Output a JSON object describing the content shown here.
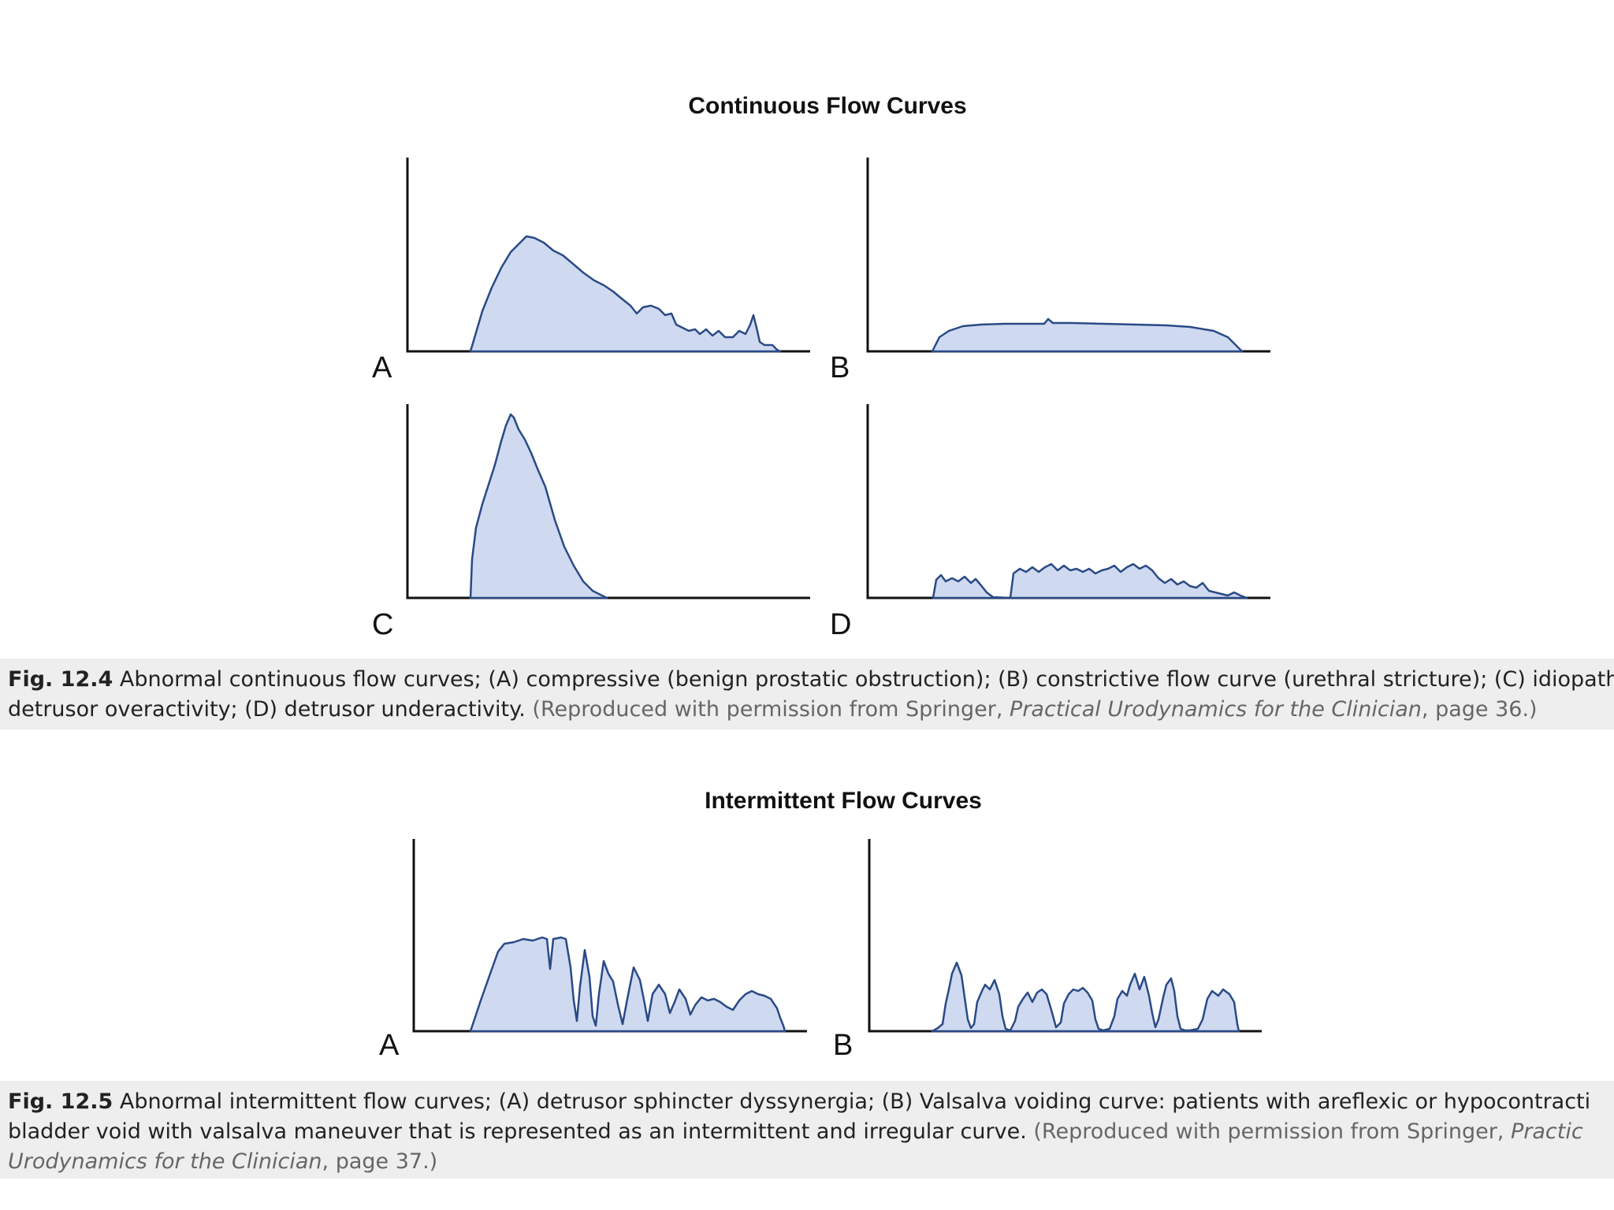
{
  "figure1": {
    "title": "Continuous Flow Curves",
    "panels": [
      {
        "label": "A",
        "condition": "compressive (benign prostatic obstruction)"
      },
      {
        "label": "B",
        "condition": "constrictive flow curve (urethral stricture)"
      },
      {
        "label": "C",
        "condition": "idiopathic detrusor overactivity"
      },
      {
        "label": "D",
        "condition": "detrusor underactivity"
      }
    ],
    "caption": {
      "fig_number": "Fig. 12.4",
      "line1_text": "Abnormal continuous flow curves; (A) compressive (benign prostatic obstruction); (B) constrictive flow curve (urethral stricture); (C) idiopath",
      "line2_text": "detrusor overactivity; (D) detrusor underactivity.",
      "source_prefix": "(Reproduced with permission from Springer, ",
      "source_book": "Practical Urodynamics for the Clinician",
      "source_suffix": ", page 36.)"
    }
  },
  "figure2": {
    "title": "Intermittent Flow Curves",
    "panels": [
      {
        "label": "A",
        "condition": "detrusor sphincter dyssynergia"
      },
      {
        "label": "B",
        "condition": "Valsalva voiding curve"
      }
    ],
    "caption": {
      "fig_number": "Fig. 12.5",
      "line1_text": "Abnormal intermittent flow curves; (A) detrusor sphincter dyssynergia; (B) Valsalva voiding curve: patients with areflexic or hypocontracti",
      "line2_text": "bladder void with valsalva maneuver that is represented as an intermittent and irregular curve.",
      "source_prefix": "(Reproduced with permission from Springer, ",
      "source_book_part1": "Practic",
      "source_book_part2": "Urodynamics for the Clinician",
      "source_suffix": ", page 37.)"
    }
  },
  "colors": {
    "curve_fill": "#cfd9f0",
    "curve_stroke": "#2a4a86",
    "axis": "#111111"
  }
}
